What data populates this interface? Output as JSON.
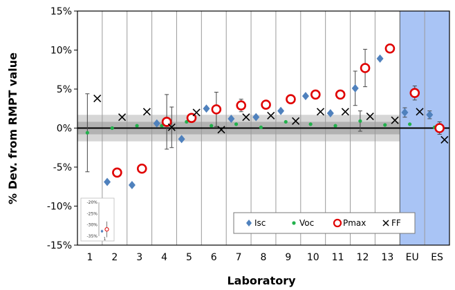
{
  "chart_data": {
    "type": "scatter",
    "xlabel": "Laboratory",
    "ylabel": "% Dev. from RMPT value",
    "ylim": [
      -15,
      15
    ],
    "yticks": [
      -15,
      -10,
      -5,
      0,
      5,
      10,
      15
    ],
    "ytick_labels": [
      "-15%",
      "-10%",
      "-5%",
      "0%",
      "5%",
      "10%",
      "15%"
    ],
    "categories": [
      "1",
      "2",
      "3",
      "4",
      "5",
      "6",
      "7",
      "8",
      "9",
      "10",
      "11",
      "12",
      "13",
      "EU",
      "ES"
    ],
    "highlight_categories": [
      "EU",
      "ES"
    ],
    "uncertainty_bands": [
      1.7,
      0.8
    ],
    "grid": "vertical category separators",
    "legend_position": "bottom-right",
    "series": [
      {
        "name": "Isc",
        "marker": "diamond",
        "color": "#4f81bd",
        "points": [
          {
            "cat": "2",
            "y": -6.9
          },
          {
            "cat": "3",
            "y": -7.3
          },
          {
            "cat": "4",
            "y": 0.6
          },
          {
            "cat": "5",
            "y": -1.4
          },
          {
            "cat": "6",
            "y": 2.5
          },
          {
            "cat": "7",
            "y": 1.2
          },
          {
            "cat": "8",
            "y": 1.4
          },
          {
            "cat": "9",
            "y": 2.2
          },
          {
            "cat": "10",
            "y": 4.1
          },
          {
            "cat": "11",
            "y": 1.9
          },
          {
            "cat": "12",
            "y": 5.1,
            "err": 2.2
          },
          {
            "cat": "13",
            "y": 8.9
          },
          {
            "cat": "EU",
            "y": 2.0,
            "err": 0.6
          },
          {
            "cat": "ES",
            "y": 1.7,
            "err": 0.5
          }
        ]
      },
      {
        "name": "Voc",
        "marker": "circle-small",
        "color": "#22b14c",
        "points": [
          {
            "cat": "1",
            "y": -0.6,
            "err": 5.0
          },
          {
            "cat": "2",
            "y": 0.0
          },
          {
            "cat": "3",
            "y": 0.3
          },
          {
            "cat": "4",
            "y": 0.3
          },
          {
            "cat": "5",
            "y": 0.8
          },
          {
            "cat": "6",
            "y": 0.3
          },
          {
            "cat": "7",
            "y": 0.5
          },
          {
            "cat": "8",
            "y": 0.1
          },
          {
            "cat": "9",
            "y": 0.8
          },
          {
            "cat": "10",
            "y": 0.5
          },
          {
            "cat": "11",
            "y": 0.3
          },
          {
            "cat": "12",
            "y": 0.9,
            "err": 1.3
          },
          {
            "cat": "13",
            "y": 0.4
          },
          {
            "cat": "EU",
            "y": 0.5
          },
          {
            "cat": "ES",
            "y": 0.1
          }
        ]
      },
      {
        "name": "Pmax",
        "marker": "circle-open",
        "color": "#e00000",
        "points": [
          {
            "cat": "2",
            "y": -5.7
          },
          {
            "cat": "3",
            "y": -5.2
          },
          {
            "cat": "4",
            "y": 0.8,
            "err": 3.5
          },
          {
            "cat": "5",
            "y": 1.3
          },
          {
            "cat": "6",
            "y": 2.4,
            "err": 2.2
          },
          {
            "cat": "7",
            "y": 2.9,
            "err": 0.8
          },
          {
            "cat": "8",
            "y": 3.0
          },
          {
            "cat": "9",
            "y": 3.7
          },
          {
            "cat": "10",
            "y": 4.3
          },
          {
            "cat": "11",
            "y": 4.3
          },
          {
            "cat": "12",
            "y": 7.7,
            "err": 2.4
          },
          {
            "cat": "13",
            "y": 10.2
          },
          {
            "cat": "EU",
            "y": 4.5,
            "err": 0.9
          },
          {
            "cat": "ES",
            "y": 0.0,
            "err": 0.8
          }
        ]
      },
      {
        "name": "FF",
        "marker": "x",
        "color": "#000000",
        "points": [
          {
            "cat": "1",
            "y": 3.8
          },
          {
            "cat": "2",
            "y": 1.4
          },
          {
            "cat": "3",
            "y": 2.1
          },
          {
            "cat": "4",
            "y": 0.1,
            "err": 2.6
          },
          {
            "cat": "5",
            "y": 2.0
          },
          {
            "cat": "6",
            "y": -0.2
          },
          {
            "cat": "7",
            "y": 1.4
          },
          {
            "cat": "8",
            "y": 1.6
          },
          {
            "cat": "9",
            "y": 0.9
          },
          {
            "cat": "10",
            "y": 2.1
          },
          {
            "cat": "11",
            "y": 2.1
          },
          {
            "cat": "12",
            "y": 1.5
          },
          {
            "cat": "13",
            "y": 1.0
          },
          {
            "cat": "EU",
            "y": 2.1
          },
          {
            "cat": "ES",
            "y": -1.5
          }
        ]
      }
    ],
    "inset": {
      "ylim": [
        -35,
        -20
      ],
      "yticks": [
        -20,
        -25,
        -30,
        -35
      ],
      "ytick_labels": [
        "-20%",
        "-25%",
        "-30%",
        "-35%"
      ],
      "xtick_label": "1",
      "points": [
        {
          "series": "Isc",
          "y": -32.8
        },
        {
          "series": "Pmax",
          "y": -32.0,
          "err": 3.5
        }
      ]
    }
  }
}
